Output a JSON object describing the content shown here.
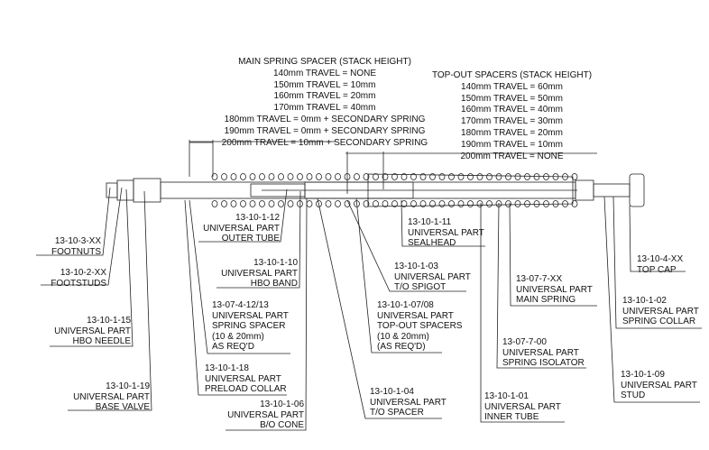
{
  "main_spring_spacer": {
    "title": "MAIN SPRING SPACER (STACK HEIGHT)",
    "rows": [
      "140mm TRAVEL = NONE",
      "150mm TRAVEL = 10mm",
      "160mm TRAVEL = 20mm",
      "170mm TRAVEL = 40mm",
      "180mm TRAVEL = 0mm + SECONDARY SPRING",
      "190mm TRAVEL = 0mm + SECONDARY SPRING",
      "200mm TRAVEL = 10mm + SECONDARY SPRING"
    ]
  },
  "top_out_spacers": {
    "title": "TOP-OUT SPACERS (STACK HEIGHT)",
    "rows": [
      "140mm TRAVEL = 60mm",
      "150mm TRAVEL = 50mm",
      "160mm TRAVEL = 40mm",
      "170mm TRAVEL = 30mm",
      "180mm TRAVEL = 20mm",
      "190mm TRAVEL = 10mm",
      "200mm TRAVEL = NONE"
    ]
  },
  "parts": [
    {
      "lines": [
        "13-10-3-XX",
        "FOOTNUTS"
      ]
    },
    {
      "lines": [
        "13-10-2-XX",
        "FOOTSTUDS"
      ]
    },
    {
      "lines": [
        "13-10-1-15",
        "UNIVERSAL PART",
        "HBO NEEDLE"
      ]
    },
    {
      "lines": [
        "13-10-1-19",
        "UNIVERSAL PART",
        "BASE VALVE"
      ]
    },
    {
      "lines": [
        "13-10-1-12",
        "UNIVERSAL PART",
        "OUTER TUBE"
      ]
    },
    {
      "lines": [
        "13-10-1-10",
        "UNIVERSAL PART",
        "HBO BAND"
      ]
    },
    {
      "lines": [
        "13-07-4-12/13",
        "UNIVERSAL PART",
        "SPRING SPACER",
        "(10 & 20mm)",
        "AS REQ'D"
      ]
    },
    {
      "lines": [
        "13-10-1-18",
        "UNIVERSAL PART",
        "PRELOAD COLLAR"
      ]
    },
    {
      "lines": [
        "13-10-1-06",
        "UNIVERSAL PART",
        "B/O CONE"
      ]
    },
    {
      "lines": [
        "13-10-1-04",
        "UNIVERSAL PART",
        "T/O SPACER"
      ]
    },
    {
      "lines": [
        "13-10-1-07/08",
        "UNIVERSAL PART",
        "TOP-OUT SPACERS",
        "(10 & 20mm)",
        "(AS REQ'D)"
      ]
    },
    {
      "lines": [
        "13-10-1-03",
        "UNIVERSAL PART",
        "T/O SPIGOT"
      ]
    },
    {
      "lines": [
        "13-10-1-11",
        "UNIVERSAL PART",
        "SEALHEAD"
      ]
    },
    {
      "lines": [
        "13-07-7-XX",
        "UNIVERSAL PART",
        "MAIN SPRING"
      ]
    },
    {
      "lines": [
        "13-07-7-00",
        "UNIVERSAL PART",
        "SPRING ISOLATOR"
      ]
    },
    {
      "lines": [
        "13-10-1-01",
        "UNIVERSAL PART",
        "INNER TUBE"
      ]
    },
    {
      "lines": [
        "13-10-4-XX",
        "TOP CAP"
      ]
    },
    {
      "lines": [
        "13-10-1-02",
        "UNIVERSAL PART",
        "SPRING COLLAR"
      ]
    },
    {
      "lines": [
        "13-10-1-09",
        "UNIVERSAL PART",
        "STUD"
      ]
    }
  ]
}
